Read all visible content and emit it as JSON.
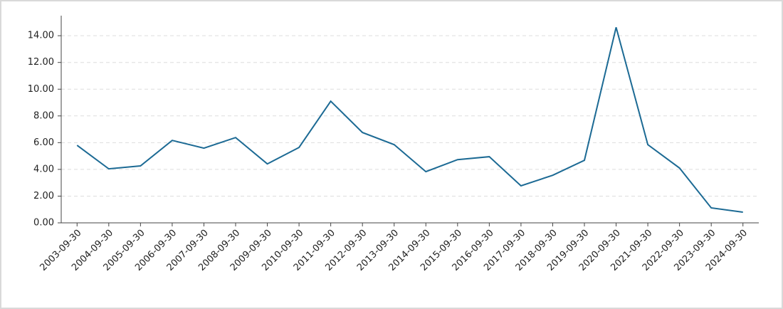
{
  "chart_data": {
    "type": "line",
    "categories": [
      "2003-09-30",
      "2004-09-30",
      "2005-09-30",
      "2006-09-30",
      "2007-09-30",
      "2008-09-30",
      "2009-09-30",
      "2010-09-30",
      "2011-09-30",
      "2012-09-30",
      "2013-09-30",
      "2014-09-30",
      "2015-09-30",
      "2016-09-30",
      "2017-09-30",
      "2018-09-30",
      "2019-09-30",
      "2020-09-30",
      "2021-09-30",
      "2022-09-30",
      "2023-09-30",
      "2024-09-30"
    ],
    "values": [
      5.8,
      4.04,
      4.26,
      6.17,
      5.59,
      6.38,
      4.41,
      5.64,
      9.1,
      6.76,
      5.85,
      3.83,
      4.73,
      4.95,
      2.77,
      3.56,
      4.68,
      14.63,
      5.85,
      4.1,
      1.12,
      0.8
    ],
    "color": "#1c6a94",
    "ylim": [
      0,
      15.5
    ],
    "yticks": [
      {
        "value": 0,
        "label": "0.00"
      },
      {
        "value": 2,
        "label": "2.00"
      },
      {
        "value": 4,
        "label": "4.00"
      },
      {
        "value": 6,
        "label": "6.00"
      },
      {
        "value": 8,
        "label": "8.00"
      },
      {
        "value": 10,
        "label": "10.00"
      },
      {
        "value": 12,
        "label": "12.00"
      },
      {
        "value": 14,
        "label": "14.00"
      }
    ],
    "grid": true
  }
}
